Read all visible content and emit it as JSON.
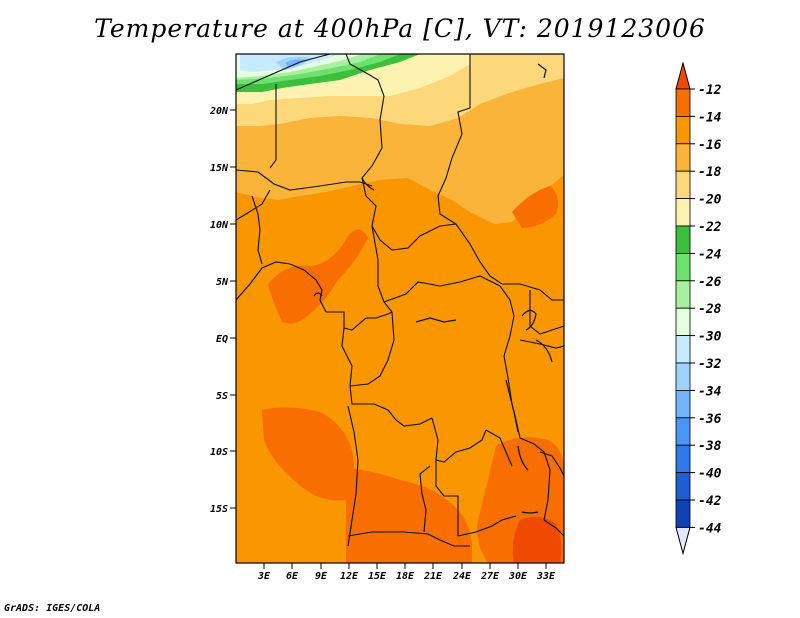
{
  "title": "Temperature at 400hPa [C], VT: 2019123006",
  "credit": "GrADS: IGES/COLA",
  "map": {
    "lat_labels": [
      "20N",
      "15N",
      "10N",
      "5N",
      "EQ",
      "5S",
      "10S",
      "15S"
    ],
    "lon_labels": [
      "3E",
      "6E",
      "9E",
      "12E",
      "15E",
      "18E",
      "21E",
      "24E",
      "27E",
      "30E",
      "33E"
    ]
  },
  "colorbar": {
    "labels": [
      "-12",
      "-14",
      "-16",
      "-18",
      "-20",
      "-22",
      "-24",
      "-26",
      "-28",
      "-30",
      "-32",
      "-34",
      "-36",
      "-38",
      "-40",
      "-42",
      "-44"
    ],
    "colors": [
      "#f04a00",
      "#f86e00",
      "#fa9600",
      "#fbb43a",
      "#fcd87a",
      "#fef2b0",
      "#3cbf3c",
      "#6ee06e",
      "#a6f0a0",
      "#e6fee0",
      "#c6eafe",
      "#a0d2fe",
      "#72b4fa",
      "#4a96f6",
      "#2e78e8",
      "#1e5ed0",
      "#1040b4",
      "#0a1a78"
    ],
    "top_color": "#f04a00",
    "bottom_color": "#e6e6fe"
  },
  "colors": {
    "land_base": "#fa9600",
    "warm": "#f86e00",
    "hot": "#f04a00",
    "mid": "#fbb43a",
    "light": "#fcd87a",
    "pale": "#fef2b0",
    "green": "#3cbf3c",
    "lightgreen": "#6ee06e",
    "paleblue": "#c6eafe",
    "blue": "#72b4fa"
  }
}
